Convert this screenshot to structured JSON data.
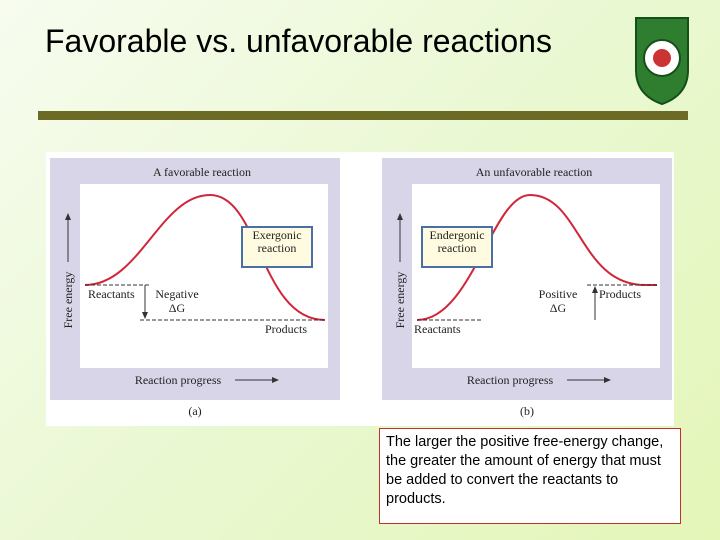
{
  "title": "Favorable vs. unfavorable reactions",
  "panels": [
    {
      "title": "A favorable reaction",
      "y_axis": "Free energy",
      "x_axis": "Reaction progress",
      "start": "Reactants",
      "end": "Products",
      "dg_sign": "Negative",
      "dg": "ΔG",
      "box": "Exergonic reaction",
      "label": "(a)"
    },
    {
      "title": "An unfavorable reaction",
      "y_axis": "Free energy",
      "x_axis": "Reaction progress",
      "start": "Reactants",
      "end": "Products",
      "dg_sign": "Positive",
      "dg": "ΔG",
      "box": "Endergonic reaction",
      "label": "(b)"
    }
  ],
  "caption": "The larger the positive free-energy change, the greater the amount of energy that must be added to convert the reactants to products."
}
